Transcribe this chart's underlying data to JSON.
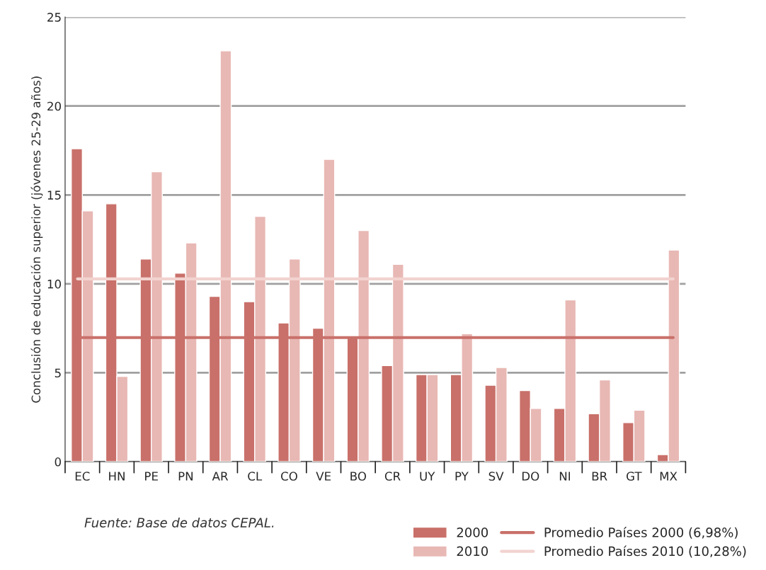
{
  "chart_data": {
    "type": "bar",
    "ylabel": "Conclusión de educación superior (jóvenes 25-29 años)",
    "categories": [
      "EC",
      "HN",
      "PE",
      "PN",
      "AR",
      "CL",
      "CO",
      "VE",
      "BO",
      "CR",
      "UY",
      "PY",
      "SV",
      "DO",
      "NI",
      "BR",
      "GT",
      "MX"
    ],
    "series": [
      {
        "name": "2000",
        "color": "#c9706a",
        "values": [
          17.6,
          14.5,
          11.4,
          10.6,
          9.3,
          9.0,
          7.8,
          7.5,
          7.0,
          5.4,
          4.9,
          4.9,
          4.3,
          4.0,
          3.0,
          2.7,
          2.2,
          0.4
        ]
      },
      {
        "name": "2010",
        "color": "#e8b8b4",
        "values": [
          14.1,
          4.8,
          16.3,
          12.3,
          23.1,
          13.8,
          11.4,
          17.0,
          13.0,
          11.1,
          4.9,
          7.2,
          5.3,
          3.0,
          9.1,
          4.6,
          2.9,
          11.9
        ]
      }
    ],
    "ref_lines": [
      {
        "axis": "y",
        "value": 6.98,
        "label": "Promedio Países 2000 (6,98%)",
        "color": "#c9706a",
        "line_style": "solid"
      },
      {
        "axis": "y",
        "value": 10.28,
        "label": "Promedio Países 2010 (10,28%)",
        "color": "#f2d3d0",
        "line_style": "solid"
      }
    ],
    "ylim": [
      0,
      25
    ],
    "yticks": [
      0,
      5,
      10,
      15,
      20,
      25
    ],
    "grid": "y",
    "legend": "bottom",
    "annotations": [
      "Fuente: Base de datos CEPAL."
    ]
  }
}
